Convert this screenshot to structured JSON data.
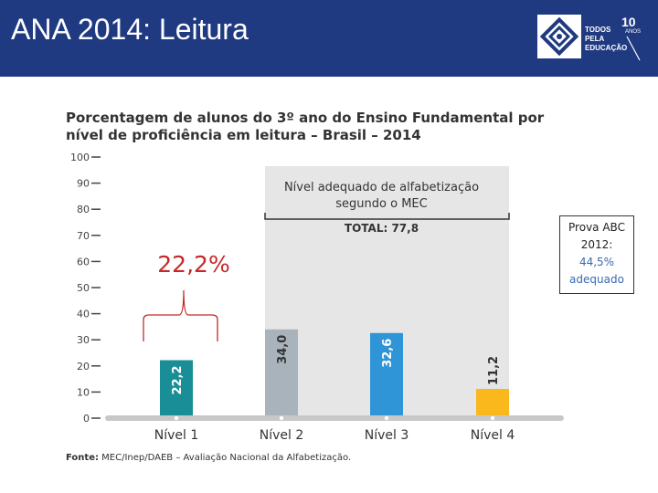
{
  "header": {
    "title": "ANA 2014: Leitura",
    "logo": {
      "lines": [
        "TODOS",
        "PELA",
        "EDUCAÇÃO"
      ],
      "years_number": "10",
      "years_label": "ANOS"
    }
  },
  "annotation": {
    "percent_label": "22,2%"
  },
  "note": {
    "line1": "Prova ABC 2012:",
    "line2": "44,5% adequado"
  },
  "source": {
    "label": "Fonte:",
    "text": " MEC/Inep/DAEB – Avaliação Nacional da Alfabetização."
  },
  "colors": {
    "header_bg": "#1f3a80",
    "annotation_red": "#c62828",
    "highlight_bg": "#e6e6e6"
  },
  "chart_data": {
    "type": "bar",
    "title": "Porcentagem de alunos do 3º ano do Ensino Fundamental por nível de proficiência em leitura – Brasil – 2014",
    "categories": [
      "Nível 1",
      "Nível 2",
      "Nível 3",
      "Nível 4"
    ],
    "values": [
      22.2,
      34.0,
      32.6,
      11.2
    ],
    "value_labels": [
      "22,2",
      "34,0",
      "32,6",
      "11,2"
    ],
    "bar_colors": [
      "#1a8e96",
      "#a9b3bb",
      "#2f95d6",
      "#fbb81c"
    ],
    "ylim": [
      0,
      100
    ],
    "yticks": [
      0,
      10,
      20,
      30,
      40,
      50,
      60,
      70,
      80,
      90,
      100
    ],
    "xlabel": "",
    "ylabel": "",
    "highlight": {
      "label_line1": "Nível adequado de alfabetização",
      "label_line2": "segundo o MEC",
      "total_label": "TOTAL: 77,8",
      "from_category": "Nível 2",
      "to_category": "Nível 4"
    }
  }
}
